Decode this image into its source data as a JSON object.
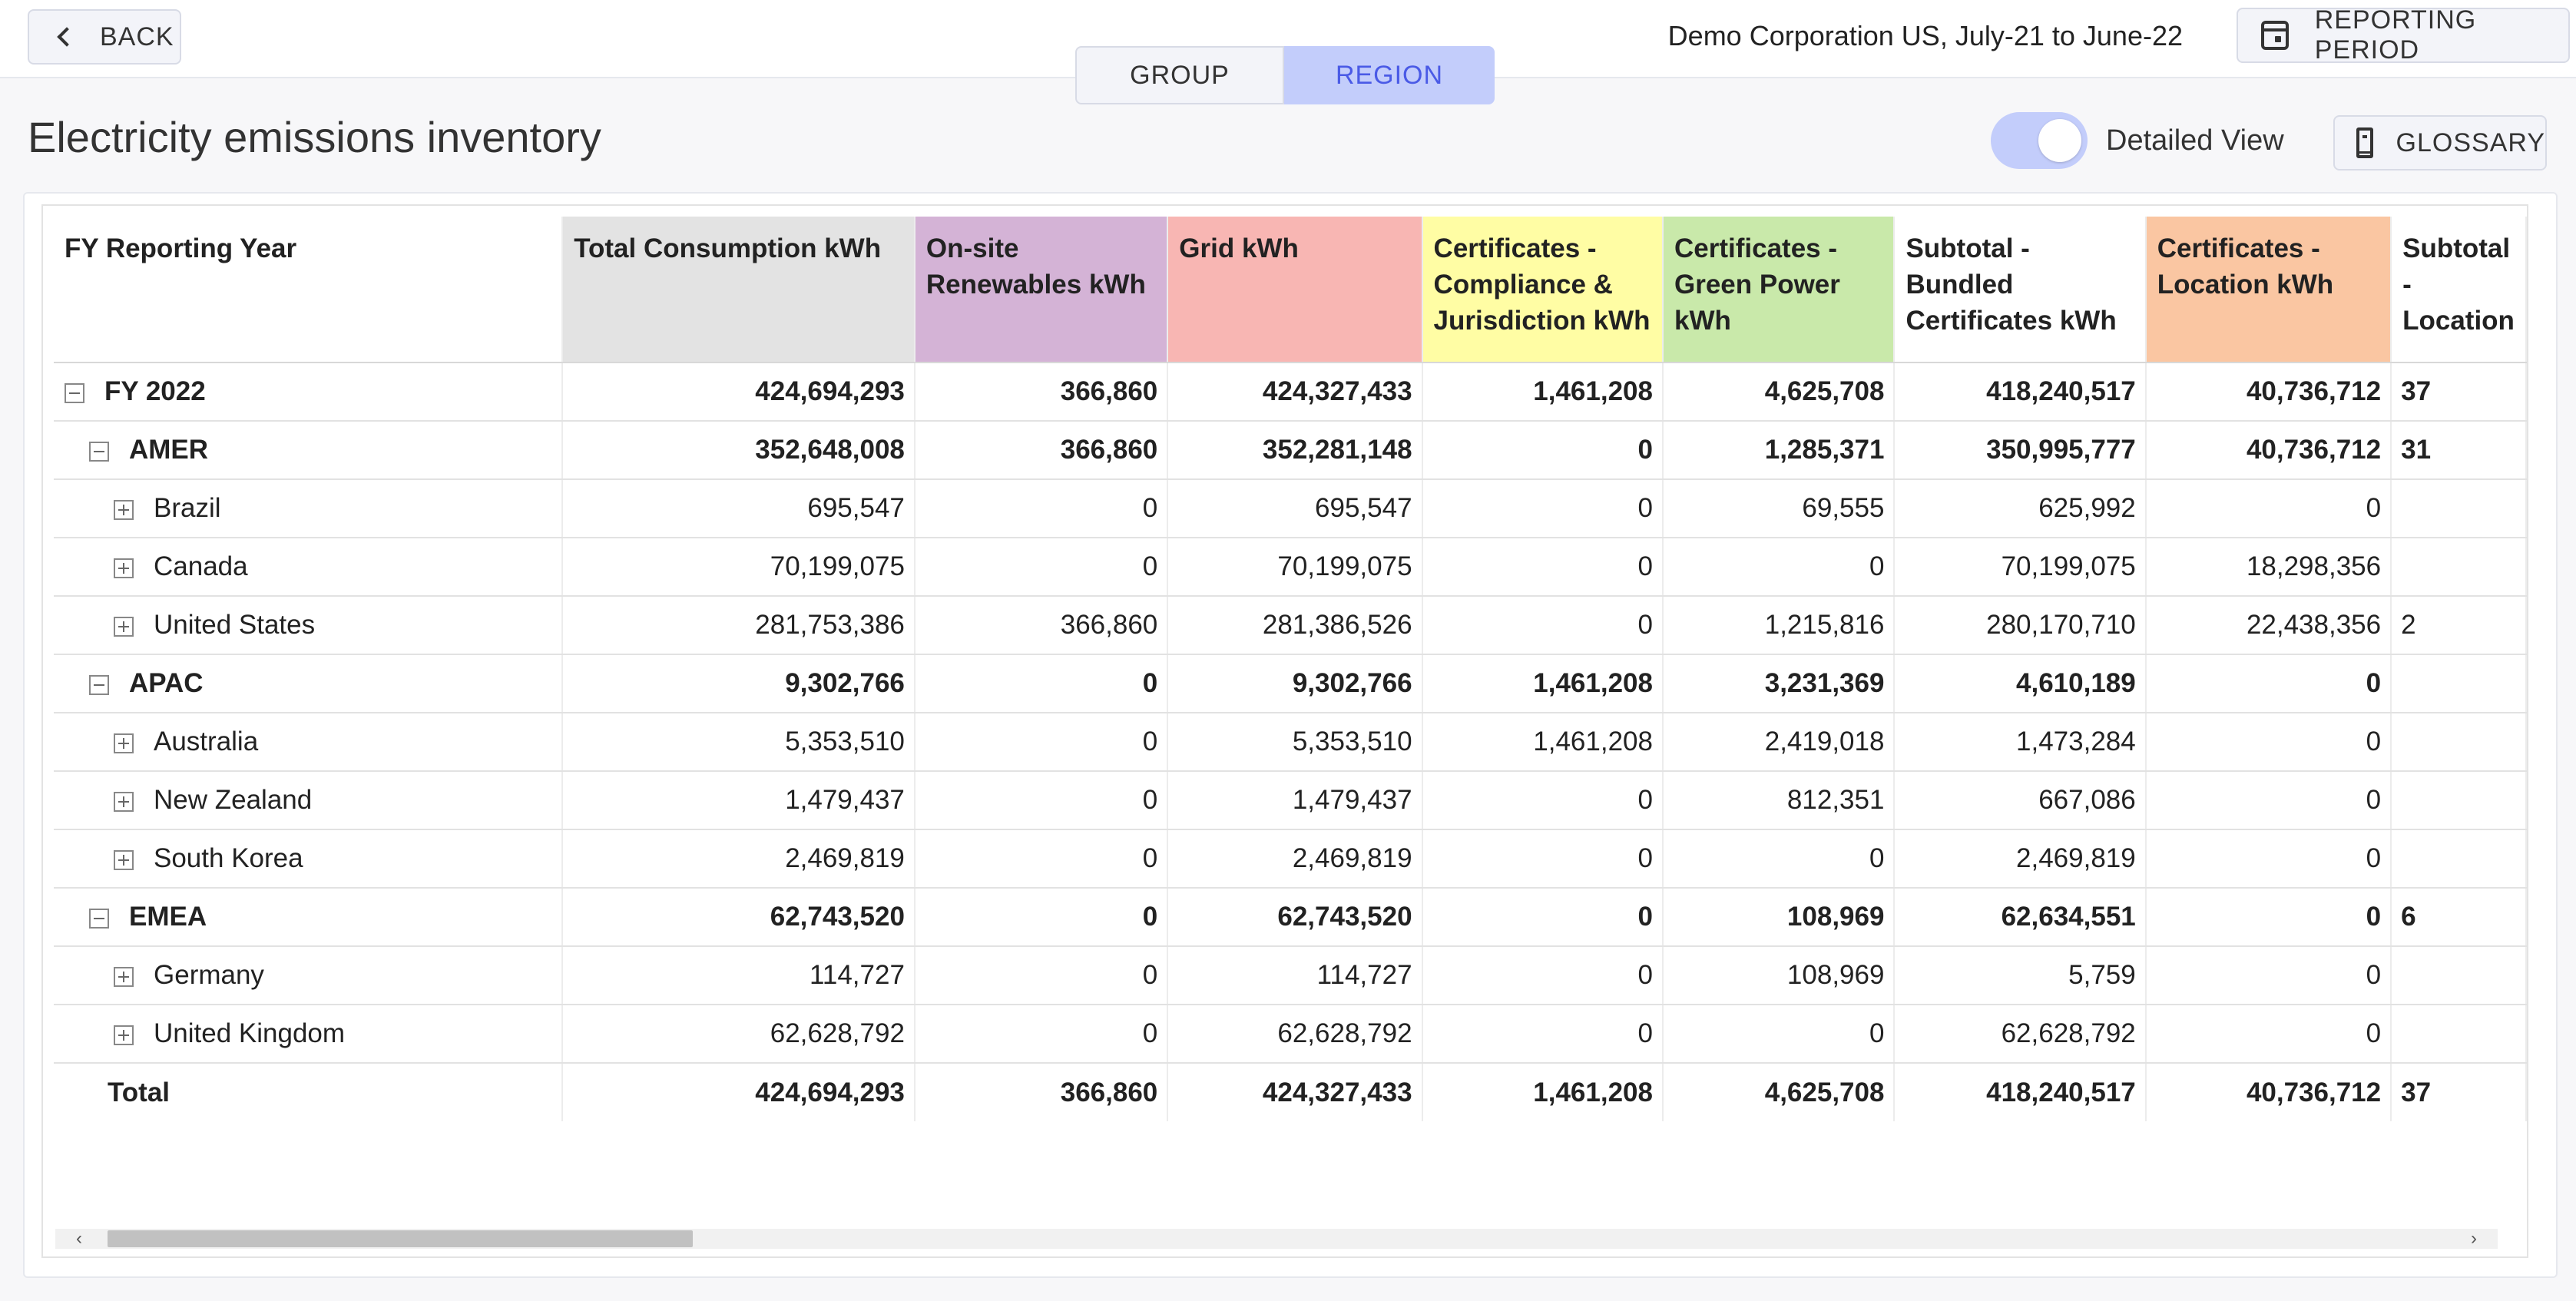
{
  "header": {
    "back_label": "BACK",
    "company_period": "Demo Corporation US, July-21 to June-22",
    "reporting_period_label": "REPORTING PERIOD"
  },
  "tabs": [
    {
      "label": "GROUP",
      "active": false
    },
    {
      "label": "REGION",
      "active": true
    }
  ],
  "page_title": "Electricity emissions inventory",
  "detailed_view": {
    "label": "Detailed View",
    "on": true
  },
  "glossary_label": "GLOSSARY",
  "colors": {
    "accent": "#c3cdfb",
    "accent_text": "#4a5ae6",
    "total_consumption": "#e3e3e3",
    "onsite_renewables": "#d4b3d6",
    "grid": "#f8b6b3",
    "compliance": "#fffda4",
    "green_power": "#c9e9aa",
    "location": "#fac6a2"
  },
  "table": {
    "columns": [
      "FY Reporting Year",
      "Total Consumption kWh",
      "On-site Renewables kWh",
      "Grid kWh",
      "Certificates - Compliance & Jurisdiction kWh",
      "Certificates - Green Power kWh",
      "Subtotal - Bundled Certificates kWh",
      "Certificates - Location kWh",
      "Subtotal - Location"
    ],
    "rows": [
      {
        "label": "FY 2022",
        "level": 0,
        "expander": "minus",
        "bold": true,
        "values": [
          "424,694,293",
          "366,860",
          "424,327,433",
          "1,461,208",
          "4,625,708",
          "418,240,517",
          "40,736,712",
          "37"
        ]
      },
      {
        "label": "AMER",
        "level": 1,
        "expander": "minus",
        "bold": true,
        "values": [
          "352,648,008",
          "366,860",
          "352,281,148",
          "0",
          "1,285,371",
          "350,995,777",
          "40,736,712",
          "31"
        ]
      },
      {
        "label": "Brazil",
        "level": 2,
        "expander": "plus",
        "bold": false,
        "values": [
          "695,547",
          "0",
          "695,547",
          "0",
          "69,555",
          "625,992",
          "0",
          ""
        ]
      },
      {
        "label": "Canada",
        "level": 2,
        "expander": "plus",
        "bold": false,
        "values": [
          "70,199,075",
          "0",
          "70,199,075",
          "0",
          "0",
          "70,199,075",
          "18,298,356",
          ""
        ]
      },
      {
        "label": "United States",
        "level": 2,
        "expander": "plus",
        "bold": false,
        "values": [
          "281,753,386",
          "366,860",
          "281,386,526",
          "0",
          "1,215,816",
          "280,170,710",
          "22,438,356",
          "2"
        ]
      },
      {
        "label": "APAC",
        "level": 1,
        "expander": "minus",
        "bold": true,
        "values": [
          "9,302,766",
          "0",
          "9,302,766",
          "1,461,208",
          "3,231,369",
          "4,610,189",
          "0",
          ""
        ]
      },
      {
        "label": "Australia",
        "level": 2,
        "expander": "plus",
        "bold": false,
        "values": [
          "5,353,510",
          "0",
          "5,353,510",
          "1,461,208",
          "2,419,018",
          "1,473,284",
          "0",
          ""
        ]
      },
      {
        "label": "New Zealand",
        "level": 2,
        "expander": "plus",
        "bold": false,
        "values": [
          "1,479,437",
          "0",
          "1,479,437",
          "0",
          "812,351",
          "667,086",
          "0",
          ""
        ]
      },
      {
        "label": "South Korea",
        "level": 2,
        "expander": "plus",
        "bold": false,
        "values": [
          "2,469,819",
          "0",
          "2,469,819",
          "0",
          "0",
          "2,469,819",
          "0",
          ""
        ]
      },
      {
        "label": "EMEA",
        "level": 1,
        "expander": "minus",
        "bold": true,
        "values": [
          "62,743,520",
          "0",
          "62,743,520",
          "0",
          "108,969",
          "62,634,551",
          "0",
          "6"
        ]
      },
      {
        "label": "Germany",
        "level": 2,
        "expander": "plus",
        "bold": false,
        "values": [
          "114,727",
          "0",
          "114,727",
          "0",
          "108,969",
          "5,759",
          "0",
          ""
        ]
      },
      {
        "label": "United Kingdom",
        "level": 2,
        "expander": "plus",
        "bold": false,
        "values": [
          "62,628,792",
          "0",
          "62,628,792",
          "0",
          "0",
          "62,628,792",
          "0",
          ""
        ]
      }
    ],
    "total": {
      "label": "Total",
      "values": [
        "424,694,293",
        "366,860",
        "424,327,433",
        "1,461,208",
        "4,625,708",
        "418,240,517",
        "40,736,712",
        "37"
      ]
    }
  },
  "scrollbar": {
    "left_arrow": "‹",
    "right_arrow": "›"
  }
}
